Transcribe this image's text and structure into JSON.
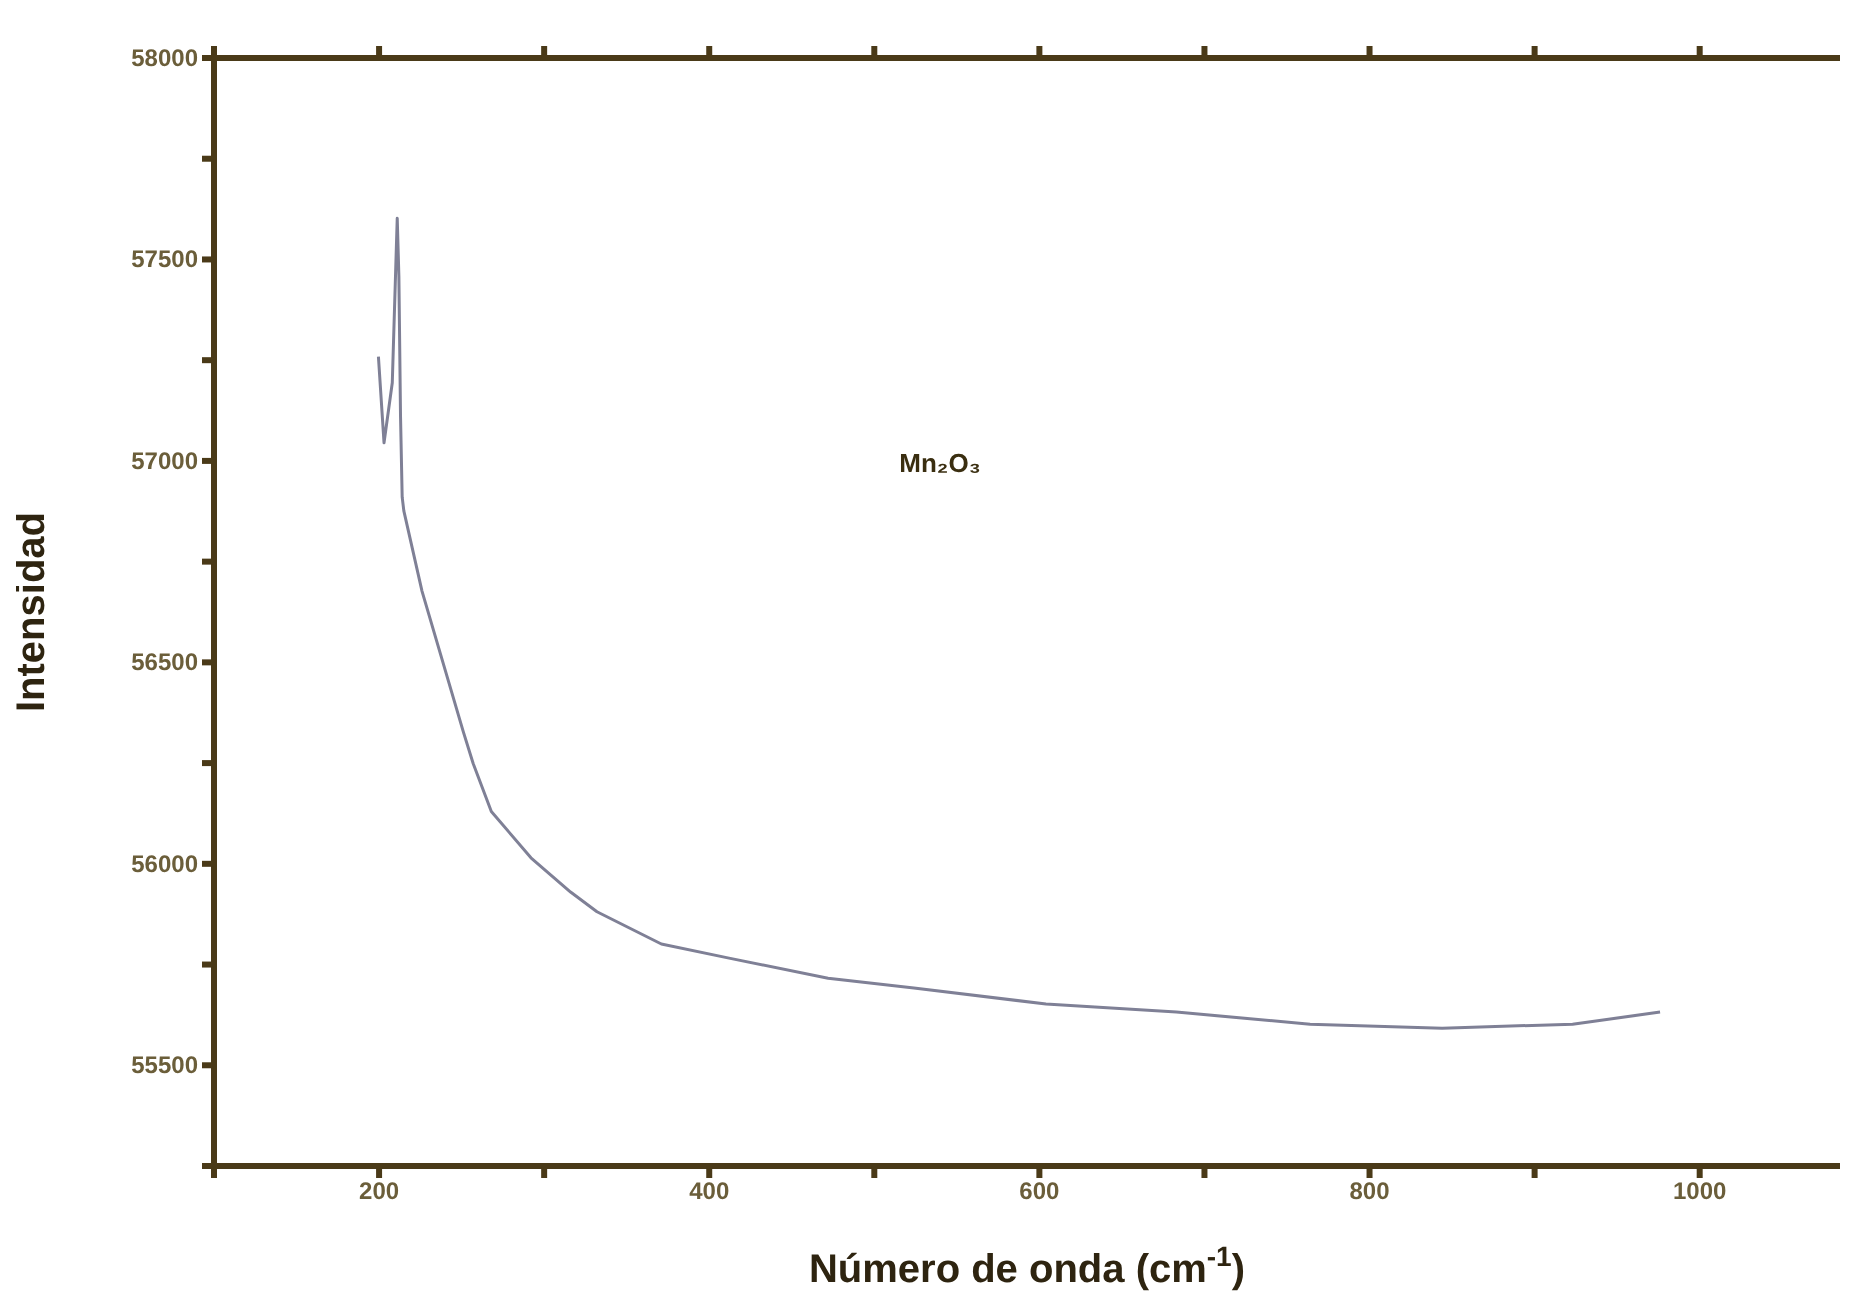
{
  "chart_data": {
    "type": "line",
    "xlabel": "Número de onda (cm$^{-1}$)",
    "ylabel": "Intensidad",
    "annotations": [
      "Mn₂O₃"
    ],
    "x": [
      199.6,
      203,
      208,
      211,
      212,
      213,
      214,
      215,
      226,
      251,
      257,
      268,
      292,
      316,
      332,
      371,
      412,
      472,
      524,
      604,
      683,
      764,
      844,
      923,
      976
    ],
    "series": [
      {
        "color": "#7f8096",
        "values": [
          57259,
          57045,
          57194,
          57602,
          57458,
          57109,
          56910,
          56876,
          56677,
          56328,
          56249,
          56130,
          56015,
          55930,
          55881,
          55801,
          55766,
          55716,
          55692,
          55652,
          55632,
          55602,
          55592,
          55602,
          55632
        ]
      }
    ],
    "xlim": [
      100,
      1085
    ],
    "xticks": [
      {
        "value": 100,
        "label": null
      },
      200,
      {
        "value": 300,
        "label": null
      },
      400,
      {
        "value": 500,
        "label": null
      },
      600,
      {
        "value": 700,
        "label": null
      },
      800,
      {
        "value": 900,
        "label": null
      },
      1000
    ],
    "ylim": [
      55250,
      58000
    ],
    "yticks": [
      {
        "value": 55250,
        "label": null
      },
      55500,
      {
        "value": 55750,
        "label": null
      },
      56000,
      {
        "value": 56250,
        "label": null
      },
      56500,
      {
        "value": 56750,
        "label": null
      },
      57000,
      {
        "value": 57250,
        "label": null
      },
      57500,
      {
        "value": 57750,
        "label": null
      },
      58000
    ],
    "grid": false,
    "legend": false,
    "marker": "none",
    "line_style": "solid"
  }
}
